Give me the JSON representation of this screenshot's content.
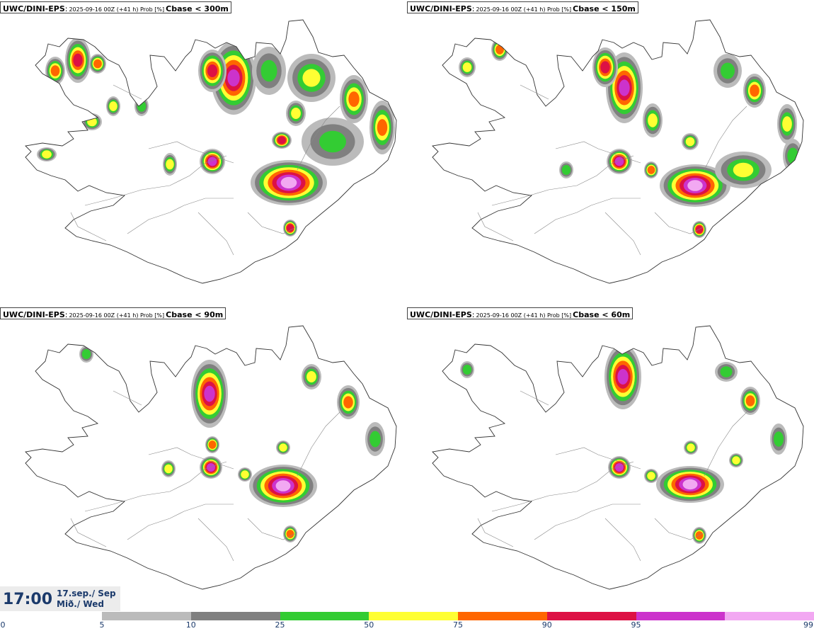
{
  "panels": [
    {
      "model": "UWC/DINI-EPS",
      "info": "2025-09-16 00Z (+41 h) Prob [%]",
      "variable": "Cbase < 300m"
    },
    {
      "model": "UWC/DINI-EPS",
      "info": "2025-09-16 00Z (+41 h) Prob [%]",
      "variable": "Cbase < 150m"
    },
    {
      "model": "UWC/DINI-EPS",
      "info": "2025-09-16 00Z (+41 h) Prob [%]",
      "variable": "Cbase < 90m"
    },
    {
      "model": "UWC/DINI-EPS",
      "info": "2025-09-16 00Z (+41 h) Prob [%]",
      "variable": "Cbase < 60m"
    }
  ],
  "time": {
    "hour": "17:00",
    "date": "17.sep./ Sep",
    "day": "Mið./ Wed"
  },
  "legend": {
    "ticks": [
      "0",
      "5",
      "10",
      "25",
      "50",
      "75",
      "90",
      "95",
      "99"
    ],
    "colors": [
      "#bbbbbb",
      "#808080",
      "#33cc33",
      "#ffff33",
      "#ff6600",
      "#dd1144",
      "#cc33cc",
      "#f2a8f2"
    ]
  }
}
